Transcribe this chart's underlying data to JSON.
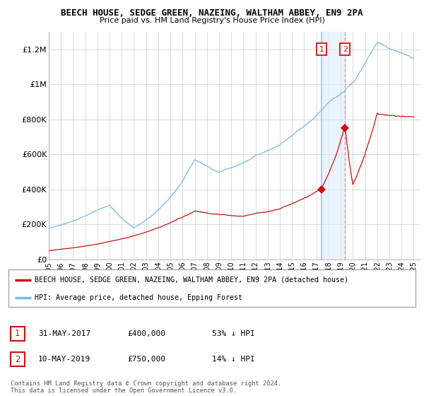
{
  "title": "BEECH HOUSE, SEDGE GREEN, NAZEING, WALTHAM ABBEY, EN9 2PA",
  "subtitle": "Price paid vs. HM Land Registry's House Price Index (HPI)",
  "ylabel_ticks": [
    "£0",
    "£200K",
    "£400K",
    "£600K",
    "£800K",
    "£1M",
    "£1.2M"
  ],
  "ytick_values": [
    0,
    200000,
    400000,
    600000,
    800000,
    1000000,
    1200000
  ],
  "ylim": [
    0,
    1300000
  ],
  "xlim_start": 1995.0,
  "xlim_end": 2025.5,
  "hpi_color": "#7ab8e8",
  "price_color": "#cc1111",
  "vline1_color": "#aaccee",
  "vline2_color": "#ff8888",
  "sale1_x": 2017.42,
  "sale1_y": 400000,
  "sale2_x": 2019.36,
  "sale2_y": 750000,
  "legend_label_red": "BEECH HOUSE, SEDGE GREEN, NAZEING, WALTHAM ABBEY, EN9 2PA (detached house)",
  "legend_label_blue": "HPI: Average price, detached house, Epping Forest",
  "table_row1": [
    "1",
    "31-MAY-2017",
    "£400,000",
    "53% ↓ HPI"
  ],
  "table_row2": [
    "2",
    "10-MAY-2019",
    "£750,000",
    "14% ↓ HPI"
  ],
  "footnote": "Contains HM Land Registry data © Crown copyright and database right 2024.\nThis data is licensed under the Open Government Licence v3.0.",
  "bg_color": "#ffffff",
  "grid_color": "#cccccc"
}
